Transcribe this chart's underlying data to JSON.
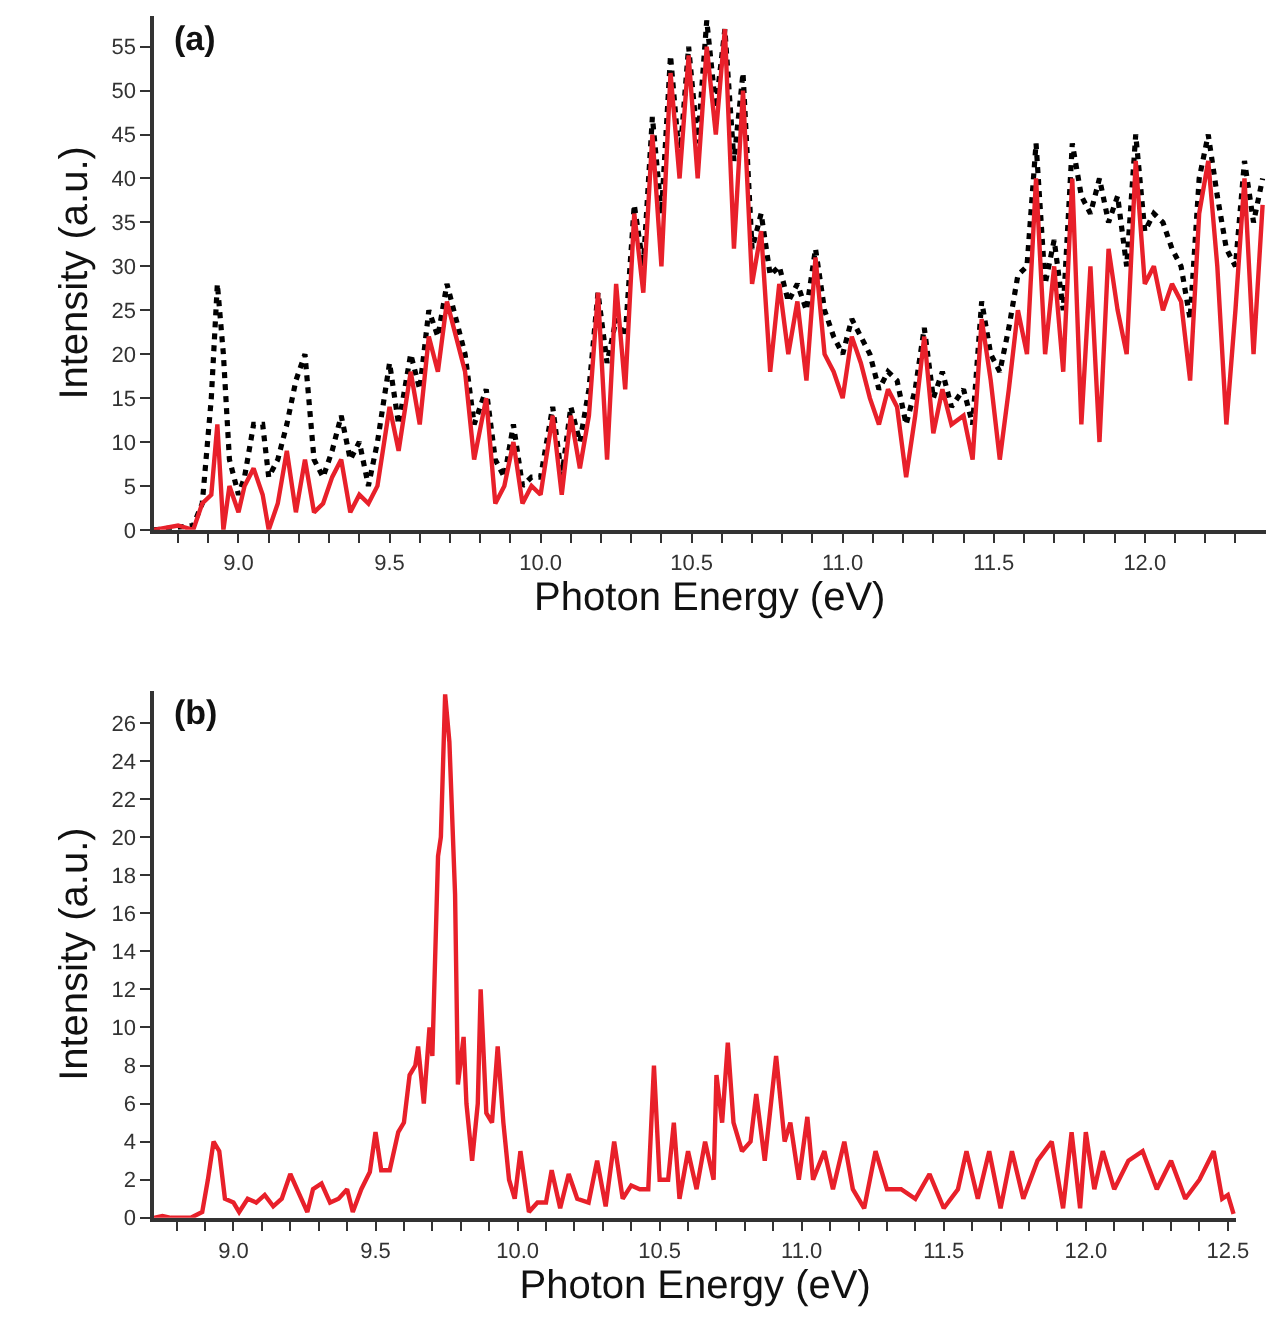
{
  "chart_data": [
    {
      "type": "line",
      "title": "(a)",
      "xlabel": "Photon Energy (eV)",
      "ylabel": "Intensity (a.u.)",
      "xlim": [
        8.72,
        12.4
      ],
      "ylim": [
        0,
        58.5
      ],
      "marker": "none",
      "xticks": [
        {
          "value": 8.8,
          "label": null
        },
        {
          "value": 8.9,
          "label": null
        },
        {
          "value": 9.0,
          "label": "9.0"
        },
        {
          "value": 9.1,
          "label": null
        },
        {
          "value": 9.2,
          "label": null
        },
        {
          "value": 9.3,
          "label": null
        },
        {
          "value": 9.4,
          "label": null
        },
        9.5,
        {
          "value": 9.6,
          "label": null
        },
        {
          "value": 9.7,
          "label": null
        },
        {
          "value": 9.8,
          "label": null
        },
        {
          "value": 9.9,
          "label": null
        },
        {
          "value": 10.0,
          "label": "10.0"
        },
        {
          "value": 10.1,
          "label": null
        },
        {
          "value": 10.2,
          "label": null
        },
        {
          "value": 10.3,
          "label": null
        },
        {
          "value": 10.4,
          "label": null
        },
        10.5,
        {
          "value": 10.6,
          "label": null
        },
        {
          "value": 10.7,
          "label": null
        },
        {
          "value": 10.8,
          "label": null
        },
        {
          "value": 10.9,
          "label": null
        },
        {
          "value": 11.0,
          "label": "11.0"
        },
        {
          "value": 11.1,
          "label": null
        },
        {
          "value": 11.2,
          "label": null
        },
        {
          "value": 11.3,
          "label": null
        },
        {
          "value": 11.4,
          "label": null
        },
        11.5,
        {
          "value": 11.6,
          "label": null
        },
        {
          "value": 11.7,
          "label": null
        },
        {
          "value": 11.8,
          "label": null
        },
        {
          "value": 11.9,
          "label": null
        },
        {
          "value": 12.0,
          "label": "12.0"
        },
        {
          "value": 12.1,
          "label": null
        },
        {
          "value": 12.2,
          "label": null
        },
        {
          "value": 12.3,
          "label": null
        }
      ],
      "yticks": [
        0,
        5,
        10,
        15,
        20,
        25,
        30,
        35,
        40,
        45,
        50,
        55
      ],
      "series": [
        {
          "color": "#000000",
          "line_style": "dotted",
          "x": [
            8.72,
            8.8,
            8.85,
            8.88,
            8.91,
            8.93,
            8.95,
            8.97,
            9.0,
            9.02,
            9.05,
            9.08,
            9.1,
            9.13,
            9.16,
            9.19,
            9.22,
            9.25,
            9.28,
            9.31,
            9.34,
            9.37,
            9.4,
            9.43,
            9.46,
            9.5,
            9.53,
            9.57,
            9.6,
            9.63,
            9.66,
            9.69,
            9.72,
            9.75,
            9.78,
            9.82,
            9.85,
            9.88,
            9.91,
            9.94,
            9.97,
            10.0,
            10.04,
            10.07,
            10.1,
            10.13,
            10.16,
            10.19,
            10.22,
            10.25,
            10.28,
            10.31,
            10.34,
            10.37,
            10.4,
            10.43,
            10.46,
            10.49,
            10.52,
            10.55,
            10.58,
            10.61,
            10.64,
            10.67,
            10.7,
            10.73,
            10.76,
            10.79,
            10.82,
            10.85,
            10.88,
            10.91,
            10.94,
            10.97,
            11.0,
            11.03,
            11.06,
            11.09,
            11.12,
            11.15,
            11.18,
            11.21,
            11.24,
            11.27,
            11.3,
            11.33,
            11.36,
            11.4,
            11.43,
            11.46,
            11.49,
            11.52,
            11.55,
            11.58,
            11.61,
            11.64,
            11.67,
            11.7,
            11.73,
            11.76,
            11.79,
            11.82,
            11.85,
            11.88,
            11.91,
            11.94,
            11.97,
            12.0,
            12.03,
            12.06,
            12.09,
            12.12,
            12.15,
            12.18,
            12.21,
            12.24,
            12.27,
            12.3,
            12.33,
            12.36,
            12.39
          ],
          "values": [
            0,
            0.3,
            0.5,
            3,
            15,
            28,
            20,
            8,
            4,
            6,
            12,
            12,
            6,
            8,
            12,
            17,
            20,
            8,
            6,
            9,
            13,
            8,
            10,
            5,
            10,
            19,
            12,
            20,
            16,
            25,
            22,
            28,
            24,
            20,
            12,
            16,
            8,
            6,
            12,
            5,
            6,
            6,
            14,
            6,
            14,
            10,
            16,
            27,
            19,
            24,
            22,
            37,
            30,
            47,
            36,
            54,
            42,
            55,
            44,
            58,
            48,
            57,
            42,
            52,
            32,
            36,
            29,
            30,
            26,
            28,
            25,
            32,
            25,
            22,
            20,
            24,
            22,
            20,
            16,
            18,
            17,
            12,
            16,
            23,
            15,
            18,
            14,
            16,
            12,
            26,
            20,
            18,
            23,
            29,
            30,
            44,
            28,
            33,
            25,
            44,
            38,
            36,
            40,
            35,
            38,
            30,
            45,
            34,
            36,
            35,
            32,
            30,
            24,
            40,
            45,
            38,
            32,
            30,
            42,
            35,
            40
          ]
        },
        {
          "color": "#e8202a",
          "line_style": "solid",
          "x": [
            8.72,
            8.8,
            8.85,
            8.88,
            8.91,
            8.93,
            8.95,
            8.97,
            9.0,
            9.02,
            9.05,
            9.08,
            9.1,
            9.13,
            9.16,
            9.19,
            9.22,
            9.25,
            9.28,
            9.31,
            9.34,
            9.37,
            9.4,
            9.43,
            9.46,
            9.5,
            9.53,
            9.57,
            9.6,
            9.63,
            9.66,
            9.69,
            9.72,
            9.75,
            9.78,
            9.82,
            9.85,
            9.88,
            9.91,
            9.94,
            9.97,
            10.0,
            10.04,
            10.07,
            10.1,
            10.13,
            10.16,
            10.19,
            10.22,
            10.25,
            10.28,
            10.31,
            10.34,
            10.37,
            10.4,
            10.43,
            10.46,
            10.49,
            10.52,
            10.55,
            10.58,
            10.61,
            10.64,
            10.67,
            10.7,
            10.73,
            10.76,
            10.79,
            10.82,
            10.85,
            10.88,
            10.91,
            10.94,
            10.97,
            11.0,
            11.03,
            11.06,
            11.09,
            11.12,
            11.15,
            11.18,
            11.21,
            11.24,
            11.27,
            11.3,
            11.33,
            11.36,
            11.4,
            11.43,
            11.46,
            11.49,
            11.52,
            11.55,
            11.58,
            11.61,
            11.64,
            11.67,
            11.7,
            11.73,
            11.76,
            11.79,
            11.82,
            11.85,
            11.88,
            11.91,
            11.94,
            11.97,
            12.0,
            12.03,
            12.06,
            12.09,
            12.12,
            12.15,
            12.18,
            12.21,
            12.24,
            12.27,
            12.3,
            12.33,
            12.36,
            12.39
          ],
          "values": [
            0,
            0.5,
            0,
            3,
            4,
            12,
            0,
            5,
            2,
            5,
            7,
            4,
            0,
            3,
            9,
            2,
            8,
            2,
            3,
            6,
            8,
            2,
            4,
            3,
            5,
            14,
            9,
            18,
            12,
            22,
            18,
            26,
            22,
            18,
            8,
            15,
            3,
            5,
            10,
            3,
            5,
            4,
            13,
            4,
            13,
            7,
            13,
            27,
            8,
            28,
            16,
            36,
            27,
            45,
            30,
            52,
            40,
            54,
            40,
            55,
            45,
            57,
            32,
            50,
            28,
            34,
            18,
            28,
            20,
            26,
            17,
            31,
            20,
            18,
            15,
            22,
            19,
            15,
            12,
            16,
            14,
            6,
            13,
            22,
            11,
            16,
            12,
            13,
            8,
            24,
            17,
            8,
            16,
            25,
            20,
            40,
            20,
            30,
            18,
            40,
            12,
            30,
            10,
            32,
            25,
            20,
            42,
            28,
            30,
            25,
            28,
            26,
            17,
            36,
            42,
            30,
            12,
            25,
            40,
            20,
            37
          ]
        }
      ]
    },
    {
      "type": "line",
      "title": "(b)",
      "xlabel": "Photon Energy (eV)",
      "ylabel": "Intensity (a.u.)",
      "xlim": [
        8.72,
        12.53
      ],
      "ylim": [
        0,
        27.7
      ],
      "marker": "none",
      "xticks": [
        {
          "value": 8.8,
          "label": null
        },
        {
          "value": 8.9,
          "label": null
        },
        {
          "value": 9.0,
          "label": "9.0"
        },
        {
          "value": 9.1,
          "label": null
        },
        {
          "value": 9.2,
          "label": null
        },
        {
          "value": 9.3,
          "label": null
        },
        {
          "value": 9.4,
          "label": null
        },
        9.5,
        {
          "value": 9.6,
          "label": null
        },
        {
          "value": 9.7,
          "label": null
        },
        {
          "value": 9.8,
          "label": null
        },
        {
          "value": 9.9,
          "label": null
        },
        {
          "value": 10.0,
          "label": "10.0"
        },
        {
          "value": 10.1,
          "label": null
        },
        {
          "value": 10.2,
          "label": null
        },
        {
          "value": 10.3,
          "label": null
        },
        {
          "value": 10.4,
          "label": null
        },
        10.5,
        {
          "value": 10.6,
          "label": null
        },
        {
          "value": 10.7,
          "label": null
        },
        {
          "value": 10.8,
          "label": null
        },
        {
          "value": 10.9,
          "label": null
        },
        {
          "value": 11.0,
          "label": "11.0"
        },
        {
          "value": 11.1,
          "label": null
        },
        {
          "value": 11.2,
          "label": null
        },
        {
          "value": 11.3,
          "label": null
        },
        {
          "value": 11.4,
          "label": null
        },
        11.5,
        {
          "value": 11.6,
          "label": null
        },
        {
          "value": 11.7,
          "label": null
        },
        {
          "value": 11.8,
          "label": null
        },
        {
          "value": 11.9,
          "label": null
        },
        {
          "value": 12.0,
          "label": "12.0"
        },
        {
          "value": 12.1,
          "label": null
        },
        {
          "value": 12.2,
          "label": null
        },
        {
          "value": 12.3,
          "label": null
        },
        {
          "value": 12.4,
          "label": null
        },
        12.5
      ],
      "yticks": [
        0,
        2,
        4,
        6,
        8,
        10,
        12,
        14,
        16,
        18,
        20,
        22,
        24,
        26
      ],
      "series": [
        {
          "color": "#e8202a",
          "line_style": "solid",
          "x": [
            8.72,
            8.75,
            8.78,
            8.85,
            8.89,
            8.91,
            8.93,
            8.95,
            8.97,
            9.0,
            9.02,
            9.05,
            9.08,
            9.11,
            9.14,
            9.17,
            9.2,
            9.23,
            9.26,
            9.28,
            9.31,
            9.34,
            9.37,
            9.4,
            9.42,
            9.45,
            9.48,
            9.5,
            9.52,
            9.55,
            9.58,
            9.6,
            9.62,
            9.64,
            9.65,
            9.67,
            9.69,
            9.7,
            9.72,
            9.73,
            9.745,
            9.76,
            9.78,
            9.79,
            9.81,
            9.82,
            9.84,
            9.86,
            9.87,
            9.89,
            9.91,
            9.93,
            9.95,
            9.97,
            9.99,
            10.01,
            10.04,
            10.07,
            10.1,
            10.12,
            10.15,
            10.18,
            10.21,
            10.25,
            10.28,
            10.31,
            10.34,
            10.37,
            10.4,
            10.43,
            10.46,
            10.48,
            10.5,
            10.53,
            10.55,
            10.57,
            10.6,
            10.63,
            10.66,
            10.69,
            10.7,
            10.72,
            10.74,
            10.76,
            10.79,
            10.82,
            10.84,
            10.87,
            10.91,
            10.94,
            10.96,
            10.99,
            11.02,
            11.04,
            11.08,
            11.11,
            11.15,
            11.18,
            11.22,
            11.26,
            11.3,
            11.35,
            11.4,
            11.45,
            11.5,
            11.55,
            11.58,
            11.62,
            11.66,
            11.7,
            11.74,
            11.78,
            11.83,
            11.88,
            11.92,
            11.95,
            11.98,
            12.0,
            12.03,
            12.06,
            12.1,
            12.15,
            12.2,
            12.25,
            12.3,
            12.35,
            12.4,
            12.45,
            12.48,
            12.5,
            12.52
          ],
          "values": [
            0,
            0.1,
            0,
            0,
            0.3,
            2,
            4,
            3.5,
            1,
            0.8,
            0.3,
            1,
            0.8,
            1.2,
            0.6,
            1,
            2.3,
            1.3,
            0.3,
            1.5,
            1.8,
            0.8,
            1,
            1.5,
            0.3,
            1.5,
            2.4,
            4.5,
            2.5,
            2.5,
            4.5,
            5,
            7.5,
            8,
            9,
            6,
            10,
            8.5,
            19,
            20,
            27.5,
            25,
            17,
            7,
            9.5,
            6,
            3,
            6,
            12,
            5.5,
            5,
            9,
            5,
            2,
            1,
            3.5,
            0.3,
            0.8,
            0.8,
            2.5,
            0.5,
            2.3,
            1,
            0.8,
            3,
            0.6,
            4,
            1,
            1.7,
            1.5,
            1.5,
            8,
            2,
            2,
            5,
            1,
            3.5,
            1.5,
            4,
            2,
            7.5,
            5,
            9.2,
            5,
            3.5,
            4,
            6.5,
            3,
            8.5,
            4,
            5,
            2,
            5.3,
            2,
            3.5,
            1.5,
            4,
            1.5,
            0.5,
            3.5,
            1.5,
            1.5,
            1,
            2.3,
            0.5,
            1.5,
            3.5,
            1,
            3.5,
            0.5,
            3.5,
            1,
            3,
            4,
            0.5,
            4.5,
            0.5,
            4.5,
            1.5,
            3.5,
            1.5,
            3,
            3.5,
            1.5,
            3,
            1,
            2,
            3.5,
            1,
            1.2,
            0.2
          ]
        }
      ]
    }
  ]
}
